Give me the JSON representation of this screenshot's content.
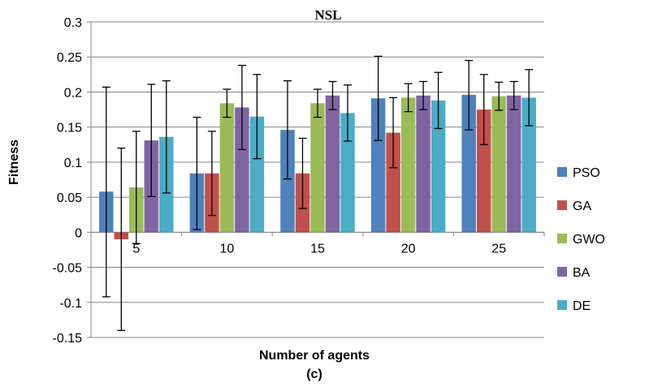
{
  "chart_data": {
    "type": "bar",
    "title": "NSL",
    "xlabel": "Number of agents",
    "ylabel": "Fitness",
    "caption": "(c)",
    "categories": [
      "5",
      "10",
      "15",
      "20",
      "25"
    ],
    "ylim": [
      -0.15,
      0.3
    ],
    "yticks": [
      "0.3",
      "0.25",
      "0.2",
      "0.15",
      "0.1",
      "0.05",
      "0",
      "-0.05",
      "-0.1",
      "-0.15"
    ],
    "ytick_values": [
      0.3,
      0.25,
      0.2,
      0.15,
      0.1,
      0.05,
      0,
      -0.05,
      -0.1,
      -0.15
    ],
    "grid": true,
    "legend_position": "right",
    "series": [
      {
        "name": "PSO",
        "color": "#4F81BD",
        "values": [
          0.058,
          0.084,
          0.146,
          0.191,
          0.196
        ],
        "err_low": [
          -0.092,
          0.004,
          0.076,
          0.131,
          0.146
        ],
        "err_high": [
          0.207,
          0.164,
          0.216,
          0.251,
          0.245
        ]
      },
      {
        "name": "GA",
        "color": "#C0504D",
        "values": [
          -0.01,
          0.084,
          0.084,
          0.142,
          0.175
        ],
        "err_low": [
          -0.14,
          0.024,
          0.034,
          0.092,
          0.125
        ],
        "err_high": [
          0.12,
          0.144,
          0.134,
          0.192,
          0.225
        ]
      },
      {
        "name": "GWO",
        "color": "#9BBB59",
        "values": [
          0.064,
          0.184,
          0.184,
          0.192,
          0.194
        ],
        "err_low": [
          -0.016,
          0.164,
          0.164,
          0.172,
          0.174
        ],
        "err_high": [
          0.144,
          0.204,
          0.204,
          0.212,
          0.214
        ]
      },
      {
        "name": "BA",
        "color": "#8064A2",
        "values": [
          0.131,
          0.178,
          0.195,
          0.195,
          0.195
        ],
        "err_low": [
          0.051,
          0.118,
          0.175,
          0.175,
          0.175
        ],
        "err_high": [
          0.211,
          0.238,
          0.215,
          0.215,
          0.215
        ]
      },
      {
        "name": "DE",
        "color": "#4BACC6",
        "values": [
          0.136,
          0.165,
          0.17,
          0.188,
          0.192
        ],
        "err_low": [
          0.056,
          0.105,
          0.13,
          0.148,
          0.152
        ],
        "err_high": [
          0.216,
          0.225,
          0.21,
          0.228,
          0.232
        ]
      }
    ]
  }
}
